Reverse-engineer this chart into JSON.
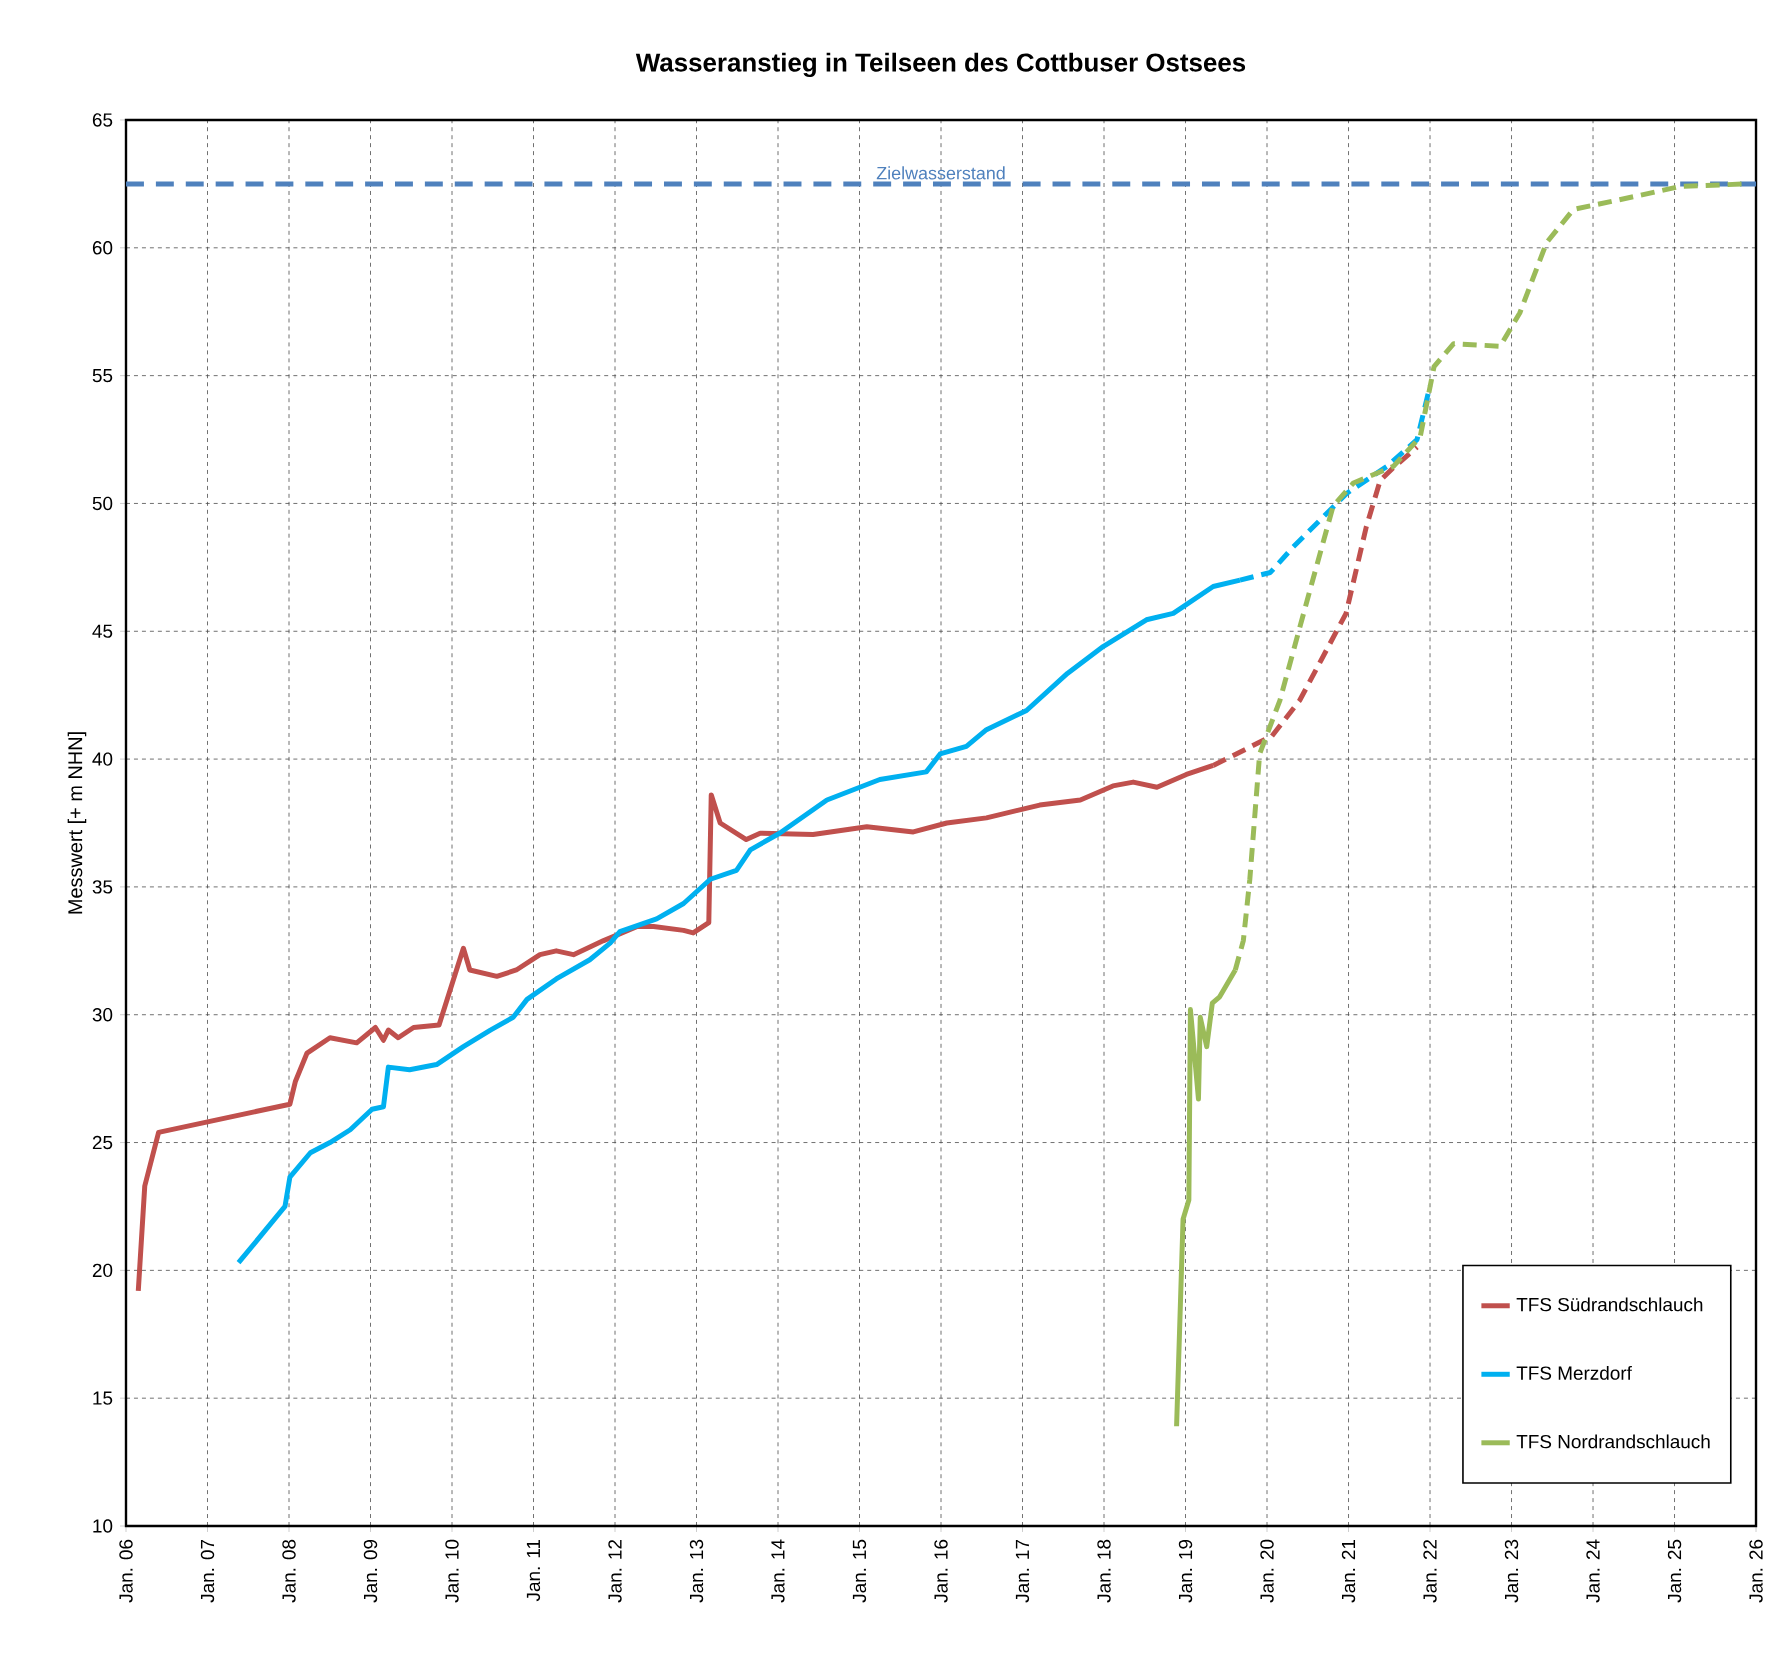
{
  "chart_data": {
    "type": "line",
    "title": "Wasseranstieg in Teilseen des Cottbuser Ostsees",
    "ylabel": "Messwert [+ m NHN]",
    "xlim": [
      "2006-01",
      "2026-01"
    ],
    "ylim": [
      10,
      65
    ],
    "xticks": [
      {
        "value": "2006-01",
        "label": "Jan. 06"
      },
      {
        "value": "2007-01",
        "label": "Jan. 07"
      },
      {
        "value": "2008-01",
        "label": "Jan. 08"
      },
      {
        "value": "2009-01",
        "label": "Jan. 09"
      },
      {
        "value": "2010-01",
        "label": "Jan. 10"
      },
      {
        "value": "2011-01",
        "label": "Jan. 11"
      },
      {
        "value": "2012-01",
        "label": "Jan. 12"
      },
      {
        "value": "2013-01",
        "label": "Jan. 13"
      },
      {
        "value": "2014-01",
        "label": "Jan. 14"
      },
      {
        "value": "2015-01",
        "label": "Jan. 15"
      },
      {
        "value": "2016-01",
        "label": "Jan. 16"
      },
      {
        "value": "2017-01",
        "label": "Jan. 17"
      },
      {
        "value": "2018-01",
        "label": "Jan. 18"
      },
      {
        "value": "2019-01",
        "label": "Jan. 19"
      },
      {
        "value": "2020-01",
        "label": "Jan. 20"
      },
      {
        "value": "2021-01",
        "label": "Jan. 21"
      },
      {
        "value": "2022-01",
        "label": "Jan. 22"
      },
      {
        "value": "2023-01",
        "label": "Jan. 23"
      },
      {
        "value": "2024-01",
        "label": "Jan. 24"
      },
      {
        "value": "2025-01",
        "label": "Jan. 25"
      },
      {
        "value": "2026-01",
        "label": "Jan. 26"
      }
    ],
    "yticks": [
      10,
      15,
      20,
      25,
      30,
      35,
      40,
      45,
      50,
      55,
      60,
      65
    ],
    "grid": true,
    "legend": "bottom right",
    "ref_lines": [
      {
        "axis": "y",
        "value": 62.5,
        "label": "Zielwasserstand",
        "color": "#4f81bd",
        "line_style": "dashed"
      }
    ],
    "series": [
      {
        "name": "TFS Südrandschlauch",
        "color": "#c0504d",
        "line_style": "solid",
        "x": [
          "2006-02-25",
          "2006-03-26",
          "2006-05-27",
          "2008-01-05",
          "2008-01-30",
          "2008-03-22",
          "2008-07-03",
          "2008-10-31",
          "2009-01-23",
          "2009-02-28",
          "2009-03-22",
          "2009-05-05",
          "2009-07-13",
          "2009-11-04",
          "2010-02-21",
          "2010-03-22",
          "2010-07-21",
          "2010-10-16",
          "2011-01-30",
          "2011-04-13",
          "2011-06-29",
          "2011-11-11",
          "2012-04-10",
          "2012-06-22",
          "2012-11-04",
          "2012-12-17",
          "2013-02-25",
          "2013-03-08",
          "2013-04-17",
          "2013-08-12",
          "2013-10-13",
          "2014-06-07",
          "2015-02-03",
          "2015-08-30",
          "2016-01-27",
          "2016-07-23",
          "2017-03-19",
          "2017-09-17",
          "2018-02-10",
          "2018-05-12",
          "2018-08-26",
          "2019-01-05",
          "2019-05-05"
        ],
        "values": [
          19.2,
          23.3,
          25.4,
          26.5,
          27.4,
          28.5,
          29.1,
          28.9,
          29.5,
          29.0,
          29.4,
          29.1,
          29.5,
          29.6,
          32.6,
          31.75,
          31.5,
          31.75,
          32.35,
          32.5,
          32.35,
          32.9,
          33.45,
          33.45,
          33.3,
          33.2,
          33.6,
          38.6,
          37.5,
          36.85,
          37.1,
          37.05,
          37.35,
          37.15,
          37.5,
          37.7,
          38.2,
          38.4,
          38.95,
          39.1,
          38.9,
          39.4,
          39.75
        ]
      },
      {
        "name": "TFS Merzdorf",
        "color": "#00b0f0",
        "line_style": "solid",
        "x": [
          "2007-05-20",
          "2007-12-14",
          "2008-01-05",
          "2008-04-06",
          "2008-07-03",
          "2008-10-02",
          "2009-01-08",
          "2009-02-28",
          "2009-03-22",
          "2009-06-25",
          "2009-10-24",
          "2010-02-21",
          "2010-06-22",
          "2010-10-02",
          "2010-12-03",
          "2011-04-13",
          "2011-09-10",
          "2011-12-10",
          "2012-01-23",
          "2012-07-06",
          "2012-11-04",
          "2013-03-04",
          "2013-06-29",
          "2013-08-30",
          "2014-01-08",
          "2014-08-08",
          "2015-04-02",
          "2015-10-27",
          "2015-12-28",
          "2016-04-24",
          "2016-07-23",
          "2017-01-19",
          "2017-07-21",
          "2017-12-28",
          "2018-07-10",
          "2018-11-07",
          "2019-05-05",
          "2019-09-02"
        ],
        "values": [
          20.3,
          22.5,
          23.65,
          24.6,
          25.0,
          25.5,
          26.3,
          26.4,
          27.95,
          27.85,
          28.05,
          28.75,
          29.4,
          29.9,
          30.6,
          31.4,
          32.15,
          32.8,
          33.25,
          33.75,
          34.35,
          35.3,
          35.65,
          36.45,
          37.1,
          38.4,
          39.2,
          39.5,
          40.2,
          40.5,
          41.15,
          41.9,
          43.35,
          44.4,
          45.45,
          45.7,
          46.75,
          47.0
        ]
      },
      {
        "name": "TFS Nordrandschlauch",
        "color": "#9bbb59",
        "line_style": "solid",
        "x": [
          "2018-11-22",
          "2018-12-21",
          "2019-01-16",
          "2019-01-23",
          "2019-02-28",
          "2019-03-08",
          "2019-04-06",
          "2019-05-01",
          "2019-06-03",
          "2019-08-12"
        ],
        "values": [
          13.9,
          22.0,
          22.75,
          30.2,
          26.7,
          29.9,
          28.75,
          30.45,
          30.7,
          31.75
        ]
      },
      {
        "color": "#c0504d",
        "line_style": "dashed",
        "x": [
          "2019-05-05",
          "2020-01-23",
          "2020-05-27",
          "2020-12-21",
          "2021-03-22",
          "2021-05-23",
          "2021-07-21",
          "2021-11-04"
        ],
        "values": [
          39.75,
          40.9,
          42.3,
          45.7,
          49.1,
          50.9,
          51.4,
          52.2
        ]
      },
      {
        "color": "#00b0f0",
        "line_style": "dashed",
        "x": [
          "2019-09-02",
          "2020-01-16",
          "2020-04-28",
          "2020-12-25",
          "2021-06-22",
          "2021-11-04",
          "2022-01-01"
        ],
        "values": [
          47.0,
          47.3,
          48.3,
          50.4,
          51.45,
          52.5,
          54.6
        ]
      },
      {
        "color": "#9bbb59",
        "line_style": "dashed",
        "x": [
          "2019-08-12",
          "2019-09-17",
          "2019-10-16",
          "2019-11-29",
          "2020-02-28",
          "2020-06-29",
          "2020-10-24",
          "2021-01-23",
          "2021-07-21",
          "2021-11-18",
          "2022-01-19",
          "2022-04-17",
          "2022-11-11",
          "2023-02-07",
          "2023-06-07",
          "2023-10-05",
          "2024-07-02",
          "2025-01-27",
          "2025-11-22"
        ],
        "values": [
          31.75,
          32.9,
          35.3,
          40.2,
          42.3,
          46.2,
          49.9,
          50.8,
          51.45,
          52.6,
          55.35,
          56.25,
          56.15,
          57.45,
          60.2,
          61.5,
          62.0,
          62.4,
          62.5
        ]
      }
    ]
  }
}
